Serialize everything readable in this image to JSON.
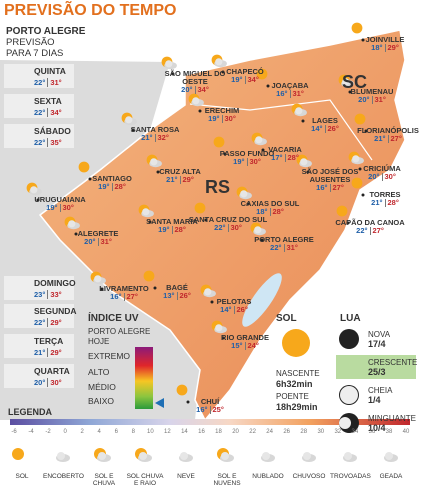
{
  "header": {
    "title": "PREVISÃO DO TEMPO"
  },
  "forecast": {
    "city": "PORTO ALEGRE",
    "subtitle": "PREVISÃO",
    "period": "PARA 7 DIAS",
    "days": [
      {
        "name": "QUINTA",
        "min": "22°",
        "max": "31°"
      },
      {
        "name": "SEXTA",
        "min": "22°",
        "max": "34°"
      },
      {
        "name": "SÁBADO",
        "min": "22°",
        "max": "35°"
      },
      {
        "name": "DOMINGO",
        "min": "23°",
        "max": "33°"
      },
      {
        "name": "SEGUNDA",
        "min": "22°",
        "max": "29°"
      },
      {
        "name": "TERÇA",
        "min": "21°",
        "max": "29°"
      },
      {
        "name": "QUARTA",
        "min": "20°",
        "max": "30°"
      }
    ]
  },
  "map": {
    "regions": [
      "SC",
      "RS"
    ],
    "cities": [
      {
        "name": "JOINVILLE",
        "min": "18°",
        "max": "29°"
      },
      {
        "name": "SÃO MIGUEL DO OESTE",
        "min": "20°",
        "max": "34°"
      },
      {
        "name": "CHAPECÓ",
        "min": "19°",
        "max": "34°"
      },
      {
        "name": "JOAÇABA",
        "min": "16°",
        "max": "31°"
      },
      {
        "name": "BLUMENAU",
        "min": "20°",
        "max": "31°"
      },
      {
        "name": "LAGES",
        "min": "14°",
        "max": "26°"
      },
      {
        "name": "FLORIANÓPOLIS",
        "min": "21°",
        "max": "27°"
      },
      {
        "name": "SANTA ROSA",
        "min": "21°",
        "max": "32°"
      },
      {
        "name": "ERECHIM",
        "min": "19°",
        "max": "30°"
      },
      {
        "name": "PASSO FUNDO",
        "min": "19°",
        "max": "30°"
      },
      {
        "name": "VACARIA",
        "min": "17°",
        "max": "28°"
      },
      {
        "name": "CRICIÚMA",
        "min": "20°",
        "max": "30°"
      },
      {
        "name": "SANTIAGO",
        "min": "19°",
        "max": "28°"
      },
      {
        "name": "CRUZ ALTA",
        "min": "21°",
        "max": "29°"
      },
      {
        "name": "SÃO JOSÉ DOS AUSENTES",
        "min": "16°",
        "max": "27°"
      },
      {
        "name": "TORRES",
        "min": "21°",
        "max": "28°"
      },
      {
        "name": "URUGUAIANA",
        "min": "19°",
        "max": "30°"
      },
      {
        "name": "CAXIAS DO SUL",
        "min": "18°",
        "max": "28°"
      },
      {
        "name": "CAPÃO DA CANOA",
        "min": "22°",
        "max": "27°"
      },
      {
        "name": "ALEGRETE",
        "min": "20°",
        "max": "31°"
      },
      {
        "name": "SANTA MARIA",
        "min": "19°",
        "max": "28°"
      },
      {
        "name": "SANTA CRUZ DO SUL",
        "min": "22°",
        "max": "30°"
      },
      {
        "name": "PORTO ALEGRE",
        "min": "22°",
        "max": "31°"
      },
      {
        "name": "LIVRAMENTO",
        "min": "16°",
        "max": "27°"
      },
      {
        "name": "BAGÉ",
        "min": "13°",
        "max": "26°"
      },
      {
        "name": "PELOTAS",
        "min": "14°",
        "max": "26°"
      },
      {
        "name": "RIO GRANDE",
        "min": "15°",
        "max": "24°"
      },
      {
        "name": "CHUÍ",
        "min": "16°",
        "max": "25°"
      }
    ]
  },
  "uv": {
    "title": "ÍNDICE UV",
    "city": "PORTO ALEGRE",
    "when": "HOJE",
    "levels": [
      "EXTREMO",
      "ALTO",
      "MÉDIO",
      "BAIXO"
    ]
  },
  "sun": {
    "title": "SOL",
    "rise_label": "NASCENTE",
    "rise": "6h32min",
    "set_label": "POENTE",
    "set": "18h29min"
  },
  "moon": {
    "title": "LUA",
    "phases": [
      {
        "name": "NOVA",
        "date": "17/4"
      },
      {
        "name": "CRESCENTE",
        "date": "25/3"
      },
      {
        "name": "CHEIA",
        "date": "1/4"
      },
      {
        "name": "MINGUANTE",
        "date": "10/4"
      }
    ]
  },
  "legend": {
    "title": "LEGENDA",
    "scale": [
      -6,
      -4,
      -2,
      0,
      2,
      4,
      6,
      8,
      10,
      12,
      14,
      16,
      18,
      20,
      22,
      24,
      26,
      28,
      30,
      32,
      34,
      36,
      38,
      40
    ],
    "icons": [
      "SOL",
      "ENCOBERTO",
      "SOL E CHUVA",
      "SOL CHUVA E RAIO",
      "NEVE",
      "SOL E NUVENS",
      "NUBLADO",
      "CHUVOSO",
      "TROVOADAS",
      "GEADA"
    ]
  }
}
